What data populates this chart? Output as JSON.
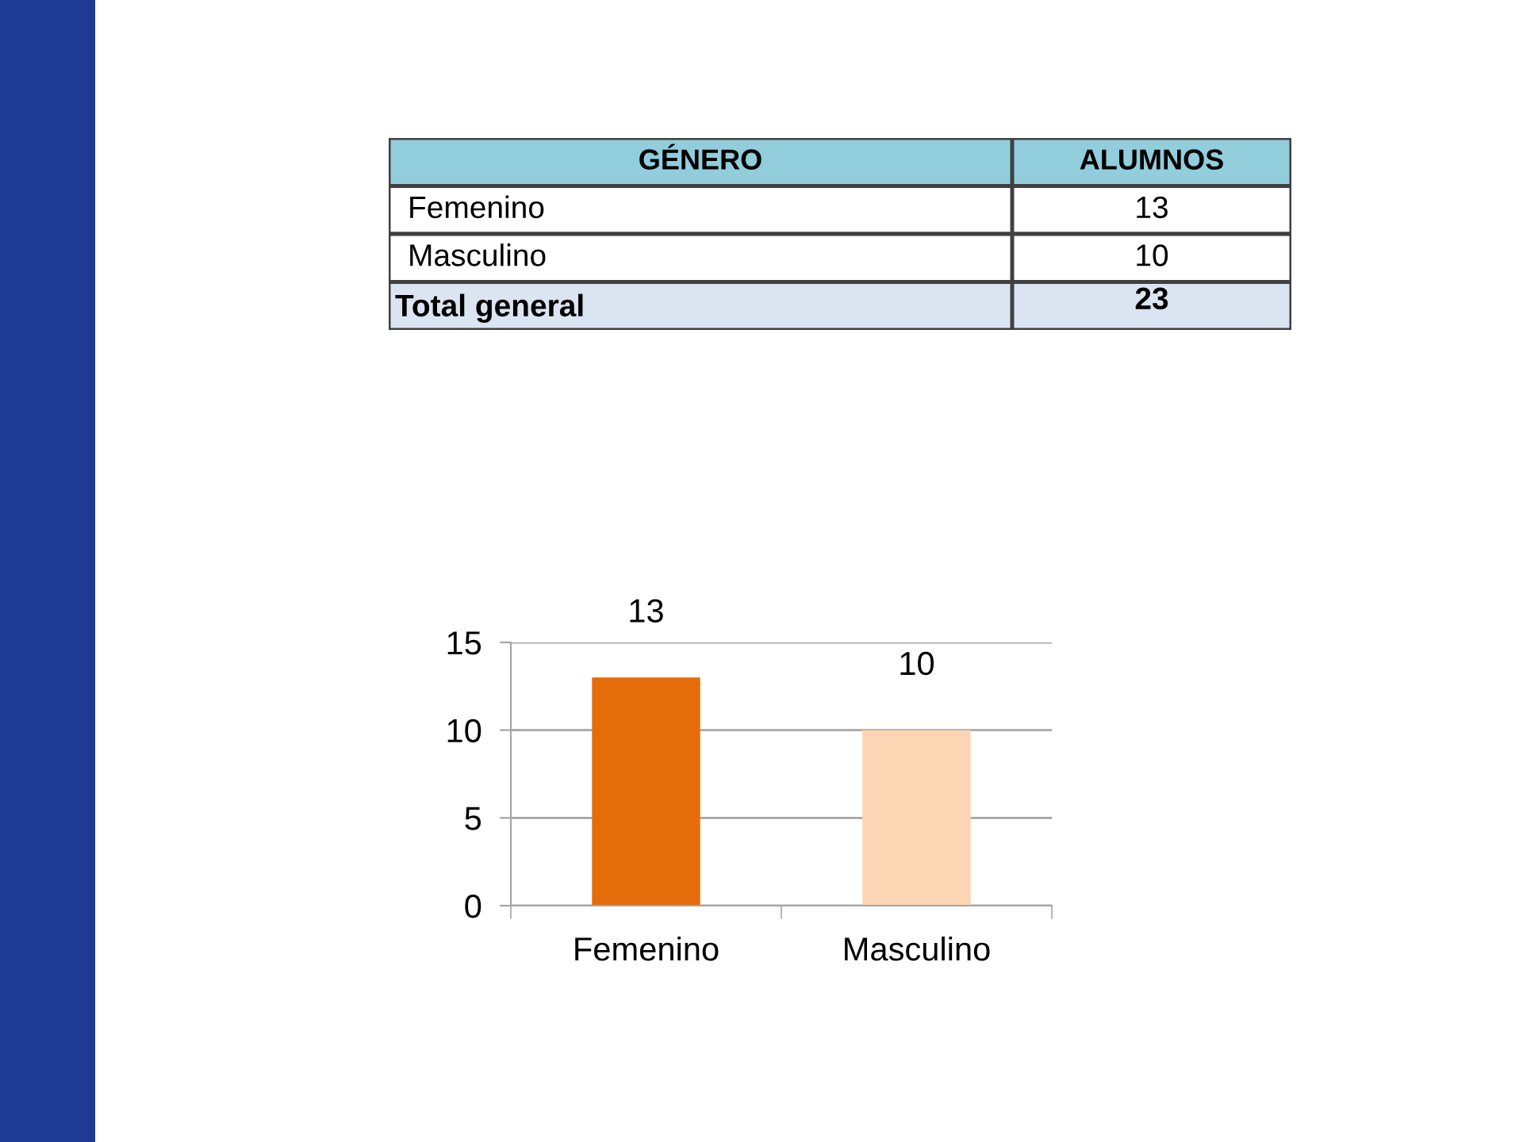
{
  "chart_data": [
    {
      "type": "other",
      "annotations": [
        "GÉNERO",
        "ALUMNOS",
        "Femenino",
        "13",
        "Masculino",
        "10",
        "Total general",
        "23"
      ]
    },
    {
      "type": "bar",
      "categories": [
        "Femenino",
        "Masculino"
      ],
      "values": [
        13,
        10
      ],
      "colors": [
        "#e46c0a",
        "#fcd5b5"
      ],
      "ylim": [
        0,
        15
      ],
      "yticks": [
        0,
        5,
        10,
        15
      ],
      "grid": "y",
      "data_labels": true
    }
  ]
}
